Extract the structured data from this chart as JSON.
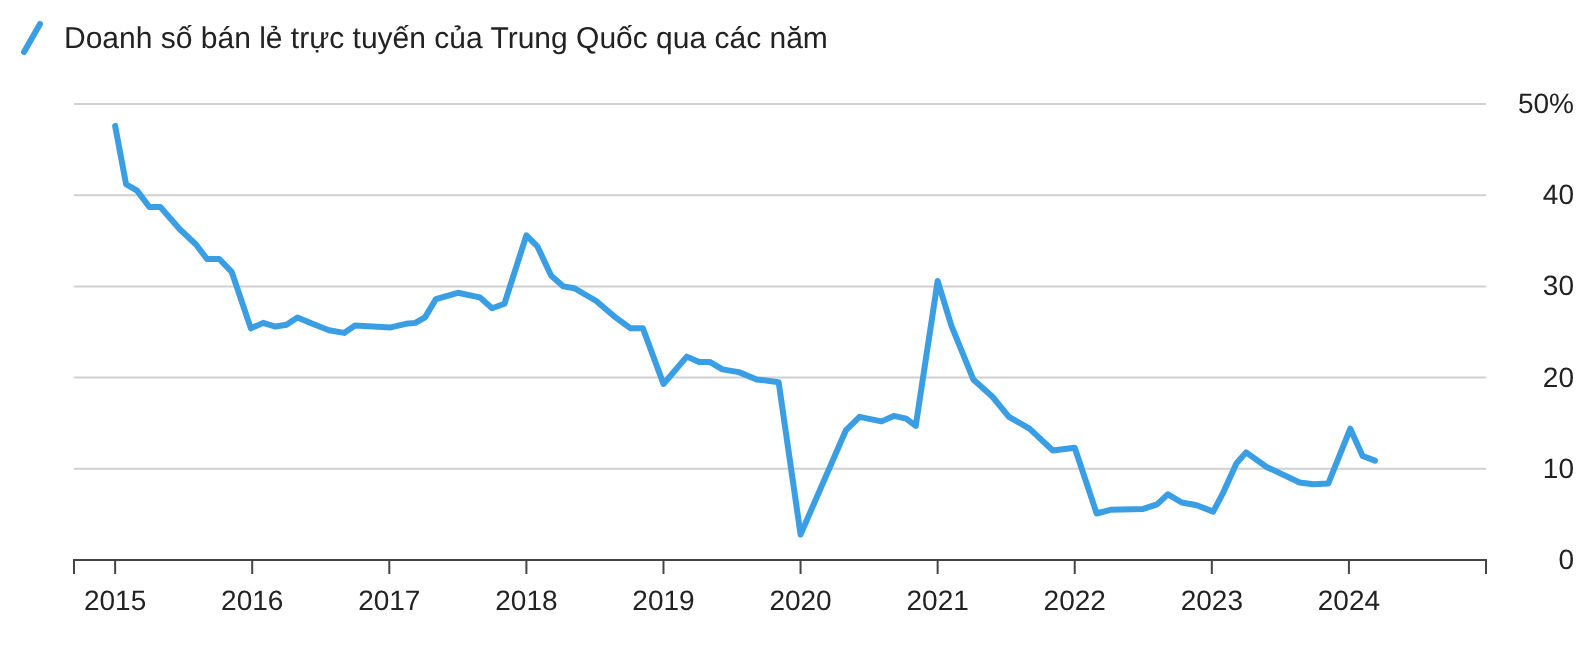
{
  "chart_data": {
    "type": "line",
    "legend": "top left",
    "grid": "y",
    "xlim": [
      2014.7,
      2025
    ],
    "xticks": [
      2015,
      2016,
      2017,
      2018,
      2019,
      2020,
      2021,
      2022,
      2023,
      2024
    ],
    "ylim": [
      0,
      50
    ],
    "yticks": [
      0,
      10,
      20,
      30,
      40,
      {
        "value": 50,
        "label": "50%"
      }
    ],
    "series": [
      {
        "name": "Doanh số bán lẻ trực tuyến của Trung Quốc qua các năm",
        "color": "#3a9ee4",
        "x": [
          2015.0,
          2015.08,
          2015.16,
          2015.25,
          2015.33,
          2015.47,
          2015.59,
          2015.67,
          2015.76,
          2015.85,
          2015.99,
          2016.08,
          2016.17,
          2016.25,
          2016.33,
          2016.44,
          2016.56,
          2016.67,
          2016.75,
          2016.88,
          2017.01,
          2017.12,
          2017.19,
          2017.26,
          2017.34,
          2017.5,
          2017.66,
          2017.75,
          2017.84,
          2018.0,
          2018.08,
          2018.18,
          2018.27,
          2018.35,
          2018.51,
          2018.65,
          2018.76,
          2018.85,
          2019.0,
          2019.17,
          2019.26,
          2019.34,
          2019.43,
          2019.55,
          2019.68,
          2019.84,
          2020.0,
          2020.33,
          2020.43,
          2020.59,
          2020.68,
          2020.77,
          2020.84,
          2021.0,
          2021.1,
          2021.26,
          2021.4,
          2021.52,
          2021.67,
          2021.84,
          2022.0,
          2022.16,
          2022.26,
          2022.5,
          2022.6,
          2022.68,
          2022.78,
          2022.89,
          2023.01,
          2023.08,
          2023.18,
          2023.25,
          2023.4,
          2023.64,
          2023.74,
          2023.85,
          2024.01,
          2024.1,
          2024.19
        ],
        "values": [
          47.6,
          41.2,
          40.5,
          38.7,
          38.7,
          36.3,
          34.6,
          33.0,
          33.0,
          31.6,
          25.4,
          26.0,
          25.6,
          25.8,
          26.6,
          25.9,
          25.2,
          24.9,
          25.7,
          25.6,
          25.5,
          25.9,
          26.0,
          26.6,
          28.6,
          29.3,
          28.8,
          27.6,
          28.1,
          35.6,
          34.4,
          31.2,
          30.0,
          29.8,
          28.4,
          26.6,
          25.4,
          25.4,
          19.3,
          22.3,
          21.7,
          21.7,
          20.9,
          20.6,
          19.8,
          19.5,
          2.8,
          14.2,
          15.7,
          15.2,
          15.8,
          15.5,
          14.7,
          30.6,
          25.7,
          19.8,
          17.9,
          15.7,
          14.4,
          12.0,
          12.3,
          5.1,
          5.5,
          5.6,
          6.1,
          7.2,
          6.3,
          6.0,
          5.3,
          7.3,
          10.6,
          11.8,
          10.2,
          8.5,
          8.3,
          8.4,
          14.4,
          11.4,
          10.9
        ]
      }
    ]
  }
}
